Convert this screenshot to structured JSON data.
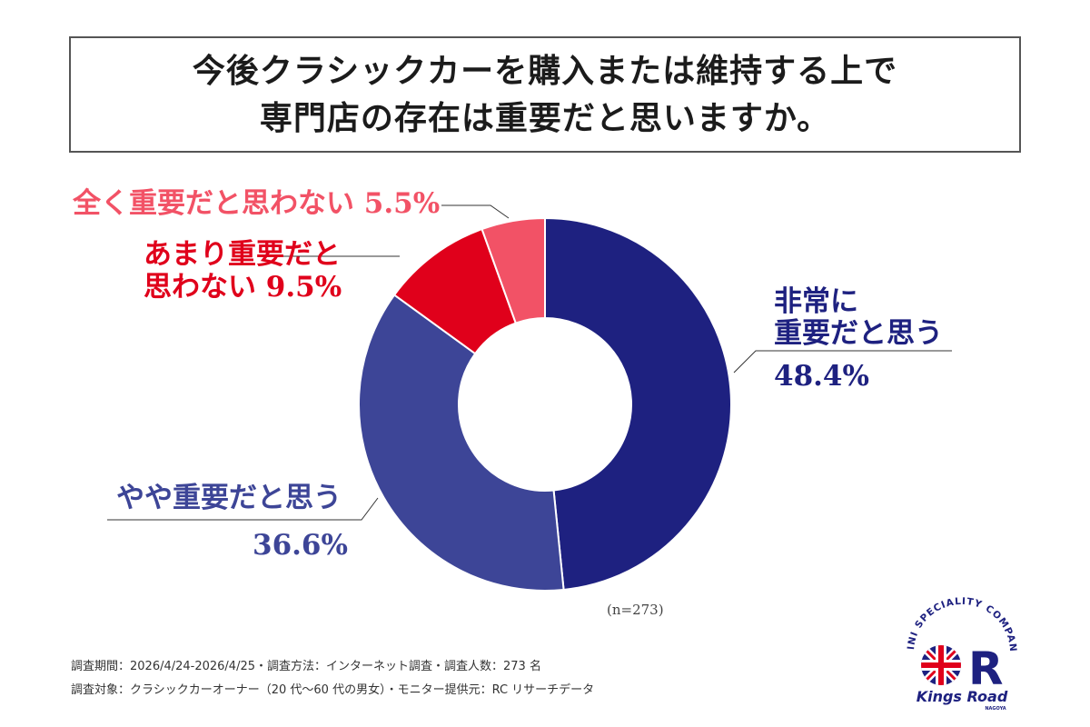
{
  "title": {
    "line1": "今後クラシックカーを購入または維持する上で",
    "line2": "専門店の存在は重要だと思いますか。"
  },
  "chart_data": {
    "type": "pie",
    "donut": true,
    "categories": [
      "非常に重要だと思う",
      "やや重要だと思う",
      "あまり重要だと思わない",
      "全く重要だと思わない"
    ],
    "values": [
      48.4,
      36.6,
      9.5,
      5.5
    ],
    "value_labels": [
      "48.4%",
      "36.6%",
      "9.5%",
      "5.5%"
    ],
    "colors": [
      "#1e2180",
      "#3d4597",
      "#e0001b",
      "#f25266"
    ],
    "start": "12 o'clock",
    "direction": "clockwise"
  },
  "labels": {
    "very": {
      "line1": "非常に",
      "line2": "重要だと思う",
      "pct": "48.4%"
    },
    "somewhat": {
      "text": "やや重要だと思う",
      "pct": "36.6%"
    },
    "not_very": {
      "line1": "あまり重要だと",
      "line2": "思わない",
      "pct": "9.5%"
    },
    "not_at_all": {
      "text": "全く重要だと思わない",
      "pct": "5.5%"
    }
  },
  "sample_note": "(n=273)",
  "footer": {
    "line1": "調査期間：2026/4/24-2026/4/25・調査方法：インターネット調査・調査人数：273 名",
    "line2": "調査対象：クラシックカーオーナー（20 代〜60 代の男女）・モニター提供元：RC リサーチデータ"
  },
  "logo": {
    "arc_text": "MINI SPECIALITY COMPANY",
    "brand": "Kings Road",
    "sub": "NAGOYA",
    "letter": "R"
  }
}
